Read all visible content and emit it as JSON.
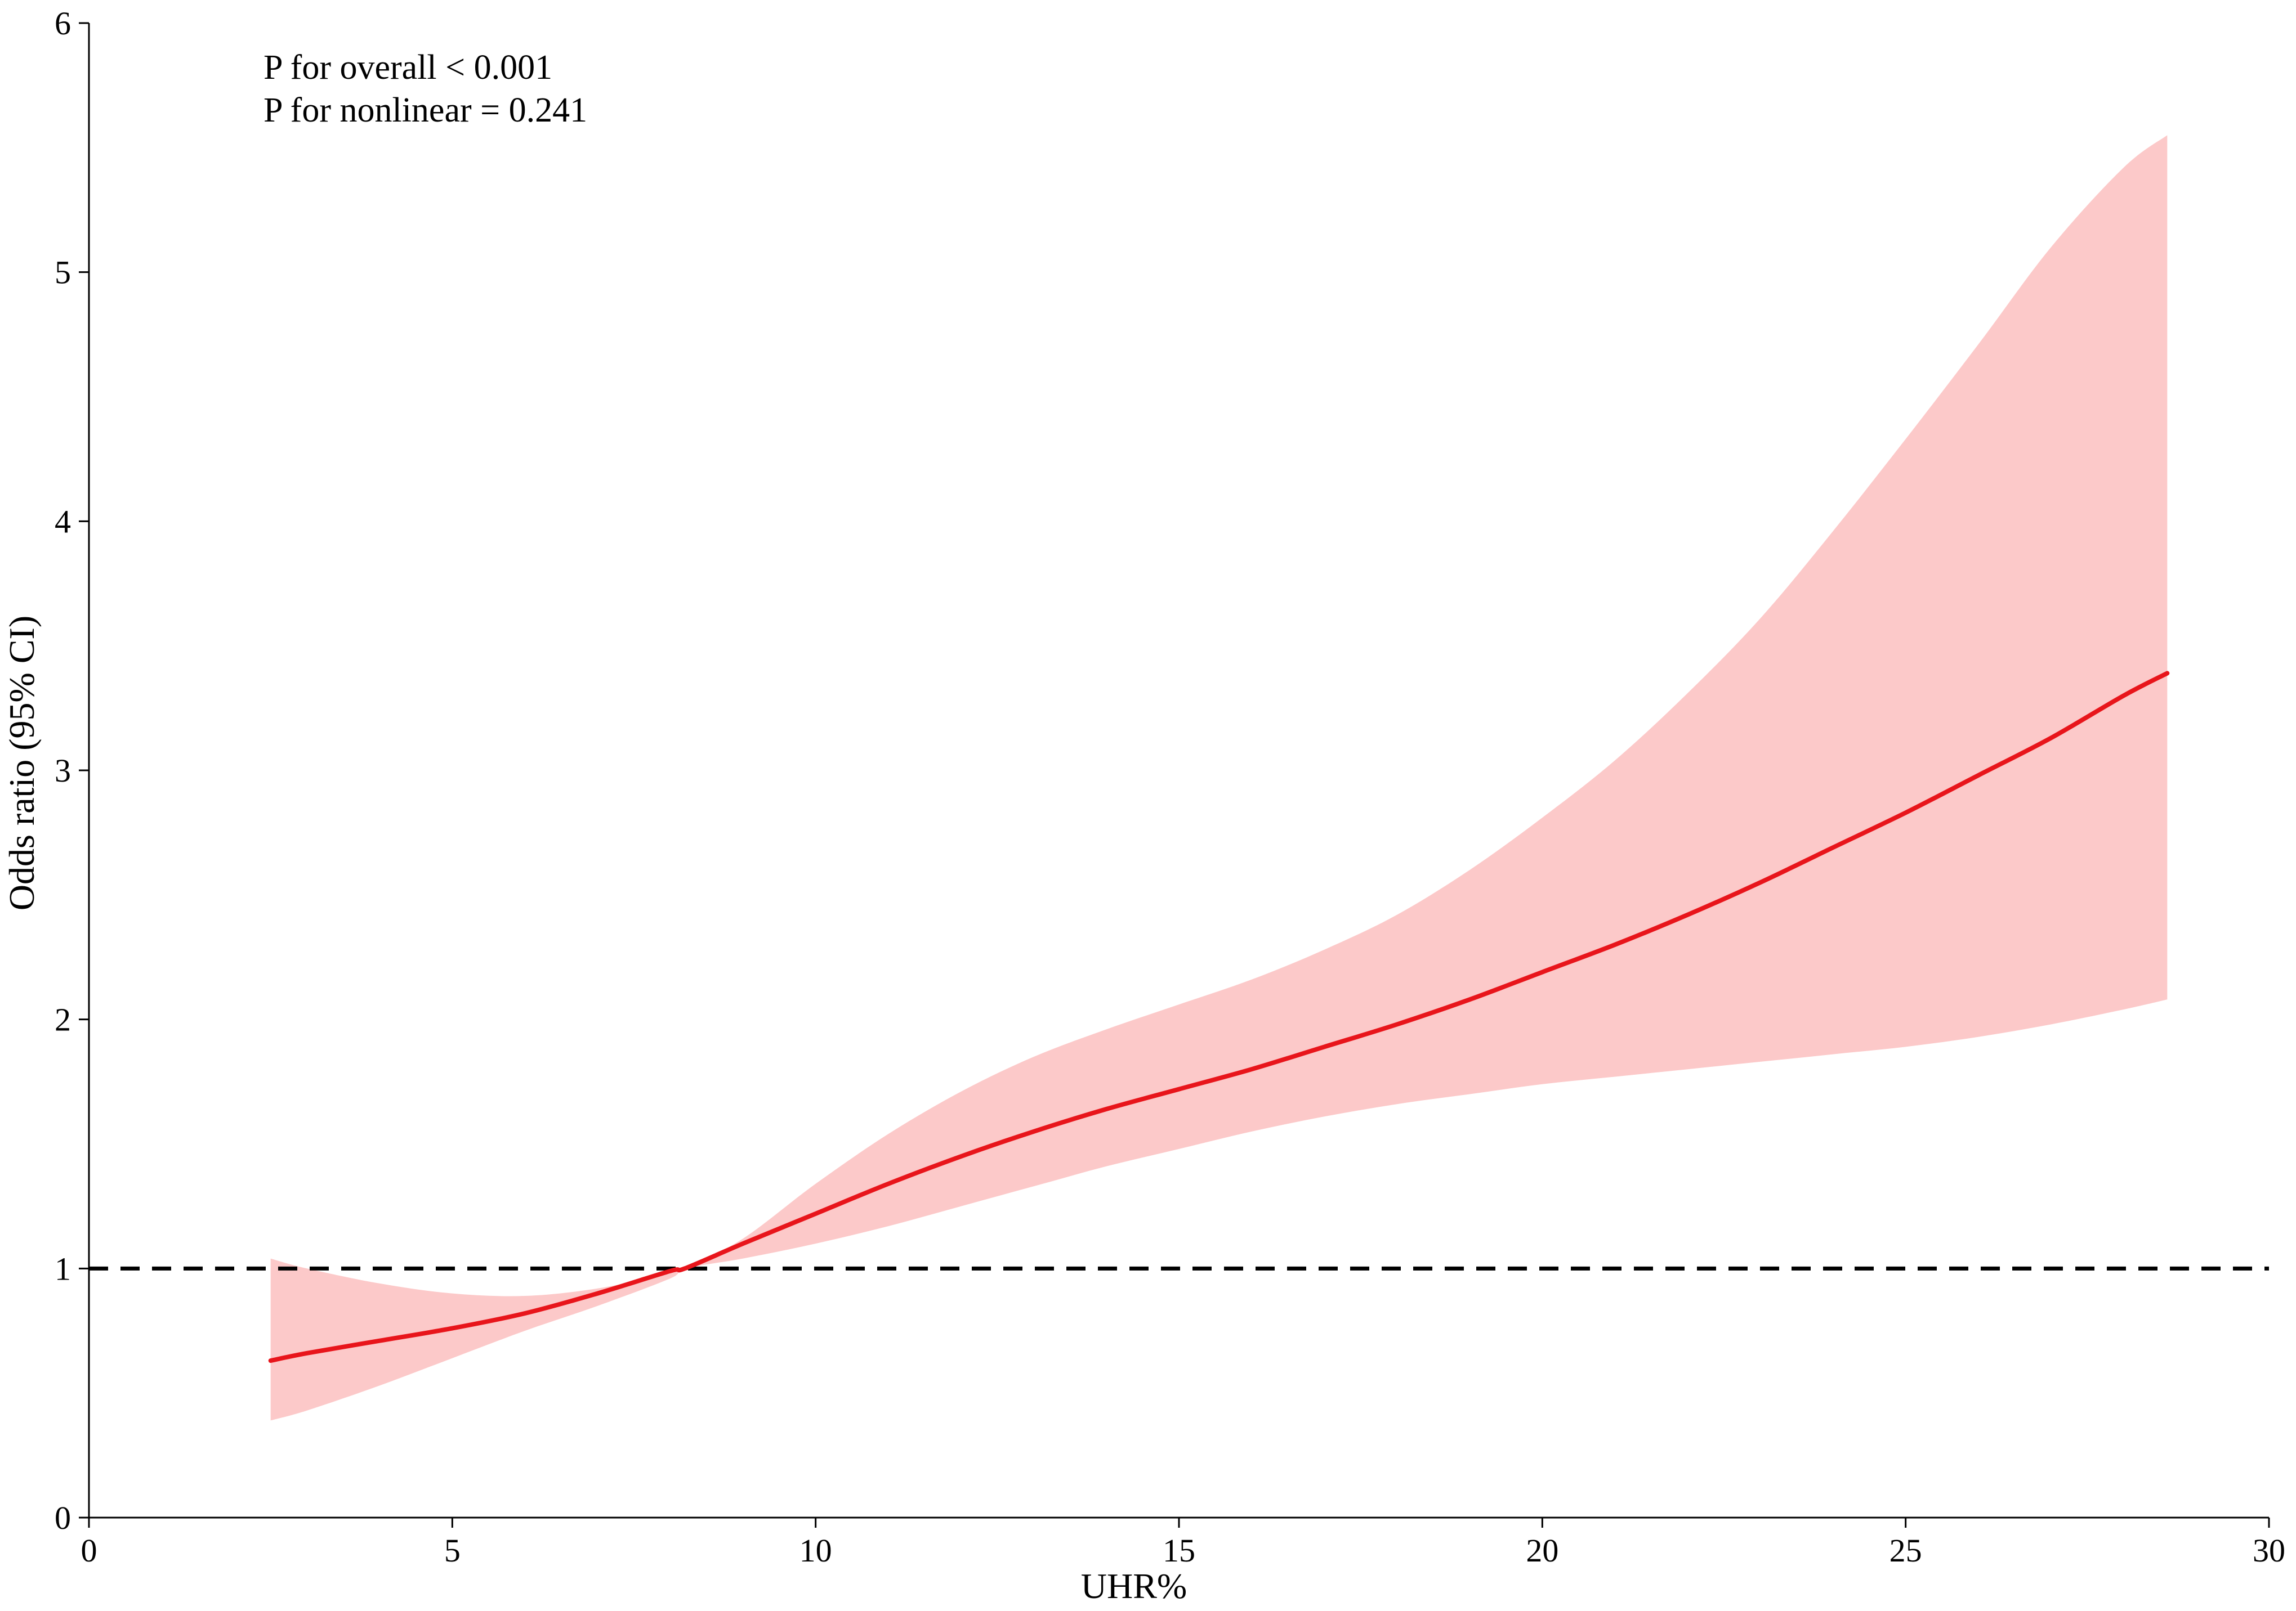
{
  "chart_data": {
    "type": "line",
    "title": "",
    "xlabel": "UHR%",
    "ylabel": "Odds ratio (95% CI)",
    "xlim": [
      0,
      30
    ],
    "ylim": [
      0,
      6
    ],
    "xticks": [
      0,
      5,
      10,
      15,
      20,
      25,
      30
    ],
    "yticks": [
      0,
      1,
      2,
      3,
      4,
      5,
      6
    ],
    "x_tick_labels": [
      "0",
      "5",
      "10",
      "15",
      "20",
      "25",
      "30"
    ],
    "y_tick_labels": [
      "0",
      "1",
      "2",
      "3",
      "4",
      "5",
      "6"
    ],
    "grid": false,
    "annotations": [
      "P for overall < 0.001",
      "P for nonlinear = 0.241"
    ],
    "reference_line": {
      "y": 1,
      "style": "dashed",
      "color": "#000000"
    },
    "series": [
      {
        "color": "#e8151b",
        "x": [
          2.5,
          3,
          4,
          5,
          6,
          7,
          8,
          8.2,
          9,
          10,
          11,
          12,
          13,
          14,
          15,
          16,
          17,
          18,
          19,
          20,
          21,
          22,
          23,
          24,
          25,
          26,
          27,
          28,
          28.6
        ],
        "y": [
          0.63,
          0.66,
          0.71,
          0.76,
          0.82,
          0.9,
          0.99,
          1.0,
          1.1,
          1.22,
          1.34,
          1.45,
          1.55,
          1.64,
          1.72,
          1.8,
          1.89,
          1.98,
          2.08,
          2.19,
          2.3,
          2.42,
          2.55,
          2.69,
          2.83,
          2.98,
          3.13,
          3.3,
          3.39
        ],
        "ci_lower": [
          0.39,
          0.43,
          0.53,
          0.64,
          0.75,
          0.85,
          0.96,
          1.0,
          1.04,
          1.1,
          1.17,
          1.25,
          1.33,
          1.41,
          1.48,
          1.55,
          1.61,
          1.66,
          1.7,
          1.74,
          1.77,
          1.8,
          1.83,
          1.86,
          1.89,
          1.93,
          1.98,
          2.04,
          2.08
        ],
        "ci_upper": [
          1.04,
          1.0,
          0.94,
          0.9,
          0.89,
          0.92,
          0.98,
          1.0,
          1.12,
          1.34,
          1.54,
          1.71,
          1.85,
          1.96,
          2.06,
          2.16,
          2.28,
          2.42,
          2.6,
          2.81,
          3.04,
          3.31,
          3.61,
          3.96,
          4.33,
          4.71,
          5.1,
          5.42,
          5.55
        ],
        "ci_color": "#fcc9c9"
      }
    ]
  }
}
